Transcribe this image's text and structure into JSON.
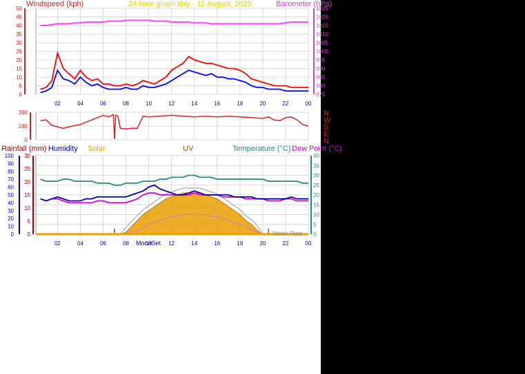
{
  "colors": {
    "wind": "#ff0000",
    "gust": "#ff0000",
    "wind_avg": "#0000ff",
    "barometer": "#ff44ff",
    "direction": "#dd2222",
    "rain": "#aa0000",
    "humidity": "#0000aa",
    "solar": "#e8a000",
    "uv": "#c05000",
    "temperature": "#208a80",
    "dewpoint": "#cc00cc",
    "axis_left": "#cc2222",
    "axis_baro": "#cc44cc",
    "x_ticks": "#0000aa",
    "grid": "#d8d8d8"
  },
  "header": {
    "wind_label": "Windspeed (kph)",
    "title": "24 hour graph day - 12 August, 2025",
    "baro_label": "Barometer (hPa)"
  },
  "legend": {
    "rain": "Rainfall (mm)",
    "humidity": "Humidity",
    "solar": "Solar",
    "uv": "UV",
    "temperature": "Temperature (°C)",
    "dewpoint": "Dew Point (°C)"
  },
  "x_ticks": [
    "02",
    "04",
    "06",
    "08",
    "10",
    "12",
    "14",
    "16",
    "18",
    "20",
    "22",
    "00"
  ],
  "direction_ticks": [
    "360",
    "180",
    "0"
  ],
  "compass": [
    "N",
    "W",
    "S",
    "E",
    "N"
  ],
  "moon": {
    "set": "MoonSet",
    "rise": "Moon Rise"
  },
  "chart_data": [
    {
      "type": "line",
      "name": "wind-barometer",
      "x": [
        0.5,
        1,
        1.5,
        2,
        2.5,
        3,
        3.5,
        4,
        4.5,
        5,
        5.5,
        6,
        6.5,
        7,
        7.5,
        8,
        8.5,
        9,
        9.5,
        10,
        10.5,
        11,
        11.5,
        12,
        12.5,
        13,
        13.5,
        14,
        14.5,
        15,
        15.5,
        16,
        16.5,
        17,
        17.5,
        18,
        18.5,
        19,
        19.5,
        20,
        20.5,
        21,
        21.5,
        22,
        22.5,
        23,
        23.5,
        24
      ],
      "xlim": [
        0.1,
        24
      ],
      "y_left_ticks": [
        0,
        5,
        10,
        15,
        20,
        25,
        30,
        35,
        40,
        45,
        50
      ],
      "y_left_lim": [
        0,
        50
      ],
      "y_right_ticks": [
        975,
        980,
        985,
        990,
        995,
        1000,
        1005,
        1010,
        1015,
        1020,
        1025
      ],
      "y_right_lim": [
        975,
        1025
      ],
      "series": [
        {
          "key": "gust",
          "values": [
            3,
            4,
            8,
            24,
            15,
            12,
            9,
            14,
            10,
            8,
            9,
            6,
            6,
            5,
            5,
            6,
            5,
            6,
            8,
            7,
            6,
            8,
            10,
            14,
            16,
            18,
            22,
            20,
            19,
            18,
            18,
            17,
            16,
            15,
            15,
            14,
            12,
            9,
            8,
            7,
            6,
            5,
            5,
            5,
            4,
            4,
            4,
            4
          ]
        },
        {
          "key": "wind",
          "values": [
            1,
            2,
            4,
            14,
            9,
            8,
            6,
            10,
            7,
            5,
            6,
            4,
            3,
            3,
            3,
            4,
            3,
            3,
            5,
            4,
            4,
            5,
            6,
            8,
            10,
            12,
            14,
            13,
            12,
            11,
            12,
            10,
            10,
            9,
            9,
            8,
            7,
            5,
            4,
            4,
            3,
            3,
            3,
            2,
            2,
            2,
            2,
            2
          ]
        },
        {
          "key": "barometer",
          "values": [
            1015,
            1015,
            1015.5,
            1016,
            1016,
            1016,
            1016.5,
            1016.5,
            1017,
            1017,
            1017,
            1017,
            1017.5,
            1017.5,
            1017.5,
            1018,
            1018,
            1018,
            1018,
            1018,
            1017.5,
            1017.5,
            1017.5,
            1017,
            1017,
            1017,
            1017,
            1016.5,
            1016.5,
            1016.5,
            1016,
            1016,
            1016,
            1016,
            1016,
            1016,
            1016,
            1016,
            1016,
            1016,
            1016,
            1016,
            1016,
            1016.5,
            1017,
            1017,
            1017,
            1017
          ]
        }
      ]
    },
    {
      "type": "line",
      "name": "wind-direction",
      "x": [
        0.5,
        1,
        1.5,
        2,
        2.5,
        3,
        3.5,
        4,
        4.5,
        5,
        5.5,
        6,
        6.5,
        6.9,
        7,
        7.1,
        7.3,
        7.5,
        8,
        8.5,
        9,
        9.5,
        10,
        11,
        12,
        13,
        14,
        15,
        16,
        17,
        18,
        19,
        20,
        20.5,
        21,
        21.5,
        22,
        22.5,
        23,
        23.5,
        24
      ],
      "xlim": [
        0.1,
        24
      ],
      "ylim": [
        0,
        360
      ],
      "series": [
        {
          "key": "direction",
          "values": [
            250,
            260,
            190,
            170,
            150,
            170,
            185,
            200,
            230,
            260,
            290,
            320,
            300,
            330,
            10,
            320,
            310,
            150,
            140,
            150,
            150,
            310,
            300,
            310,
            320,
            310,
            300,
            310,
            300,
            310,
            300,
            290,
            280,
            300,
            260,
            250,
            290,
            300,
            260,
            200,
            180
          ]
        }
      ]
    },
    {
      "type": "area",
      "name": "rain-humidity-solar-uv-temp",
      "x": [
        0.5,
        1,
        1.5,
        2,
        2.5,
        3,
        3.5,
        4,
        4.5,
        5,
        5.5,
        6,
        6.5,
        7,
        7.5,
        8,
        8.5,
        9,
        9.5,
        10,
        10.5,
        11,
        11.5,
        12,
        12.5,
        13,
        13.5,
        14,
        14.5,
        15,
        15.5,
        16,
        16.5,
        17,
        17.5,
        18,
        18.5,
        19,
        19.5,
        20,
        20.5,
        21,
        21.5,
        22,
        22.5,
        23,
        23.5,
        24
      ],
      "xlim": [
        0.1,
        24
      ],
      "y_rain_ticks": [
        0,
        5,
        10,
        15,
        20,
        25,
        30
      ],
      "y_humidity_ticks": [
        0,
        10,
        20,
        30,
        40,
        50,
        60,
        70,
        80,
        90,
        100
      ],
      "y_temp_ticks": [
        0,
        5,
        10,
        15,
        20,
        25,
        30,
        35,
        40
      ],
      "y_temp_lim": [
        0,
        40
      ],
      "series": [
        {
          "key": "temperature",
          "values": [
            28,
            27,
            27,
            27,
            28,
            28,
            27,
            27,
            27,
            27,
            26,
            26,
            26,
            25,
            25,
            26,
            26,
            26,
            27,
            27,
            27,
            28,
            28,
            29,
            29,
            29,
            30,
            30,
            29,
            29,
            29,
            28,
            28,
            28,
            28,
            28,
            28,
            28,
            28,
            28,
            27,
            27,
            27,
            27,
            27,
            27,
            26,
            26
          ]
        },
        {
          "key": "humidity",
          "values": [
            18,
            17,
            18,
            19,
            18,
            17,
            17,
            17,
            18,
            18,
            19,
            19,
            19,
            19,
            19,
            19,
            20,
            21,
            22,
            24,
            25,
            23,
            22,
            21,
            20,
            20,
            21,
            22,
            21,
            20,
            20,
            20,
            20,
            20,
            19,
            19,
            19,
            19,
            18,
            18,
            18,
            18,
            18,
            18,
            19,
            18,
            18,
            18
          ]
        },
        {
          "key": "dewpoint",
          "values": [
            18,
            17,
            18,
            18,
            17,
            16,
            16,
            16,
            16,
            16,
            17,
            17,
            16,
            16,
            16,
            16,
            17,
            18,
            20,
            21,
            21,
            20,
            20,
            20,
            20,
            20,
            20,
            21,
            20,
            20,
            20,
            20,
            19,
            19,
            19,
            19,
            18,
            18,
            18,
            18,
            17,
            17,
            17,
            18,
            18,
            17,
            17,
            17
          ]
        },
        {
          "key": "solar",
          "values": [
            0,
            0,
            0,
            0,
            0,
            0,
            0,
            0,
            0,
            0,
            0,
            0,
            0,
            0,
            0,
            1,
            4,
            7,
            10,
            12,
            14,
            16,
            18,
            19,
            20,
            21,
            21,
            21,
            21,
            20,
            19,
            18,
            16,
            14,
            12,
            10,
            7,
            5,
            2,
            0,
            0,
            0,
            0,
            0,
            0,
            0,
            0,
            0
          ]
        },
        {
          "key": "uv",
          "values": [
            0,
            0,
            0,
            0,
            0,
            0,
            0,
            0,
            0,
            0,
            0,
            0,
            0,
            0,
            0,
            0,
            1,
            2,
            3,
            5,
            6,
            7,
            8,
            9,
            9,
            10,
            10,
            10,
            10,
            10,
            9,
            9,
            8,
            7,
            6,
            5,
            4,
            2,
            1,
            0,
            0,
            0,
            0,
            0,
            0,
            0,
            0,
            0
          ]
        }
      ]
    }
  ]
}
